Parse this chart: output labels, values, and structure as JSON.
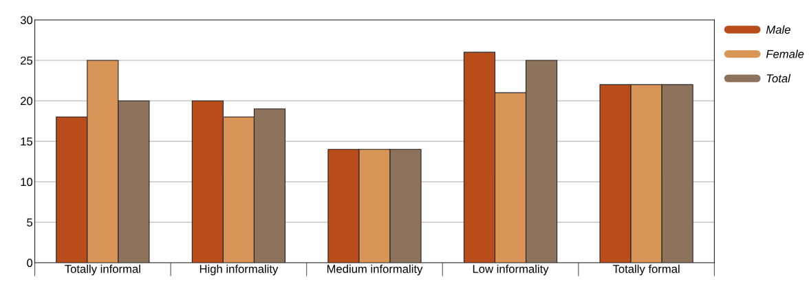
{
  "chart_data": {
    "type": "bar",
    "categories": [
      "Totally informal",
      "High informality",
      "Medium informality",
      "Low informality",
      "Totally formal"
    ],
    "series": [
      {
        "name": "Male",
        "color": "#b84c1a",
        "values": [
          18,
          20,
          14,
          26,
          22
        ]
      },
      {
        "name": "Female",
        "color": "#d99557",
        "values": [
          25,
          18,
          14,
          21,
          22
        ]
      },
      {
        "name": "Total",
        "color": "#8e735c",
        "values": [
          20,
          19,
          14,
          25,
          22
        ]
      }
    ],
    "ylim": [
      0,
      30
    ],
    "yticks": [
      0,
      5,
      10,
      15,
      20,
      25,
      30
    ],
    "grid": "y",
    "legend": "top right"
  }
}
